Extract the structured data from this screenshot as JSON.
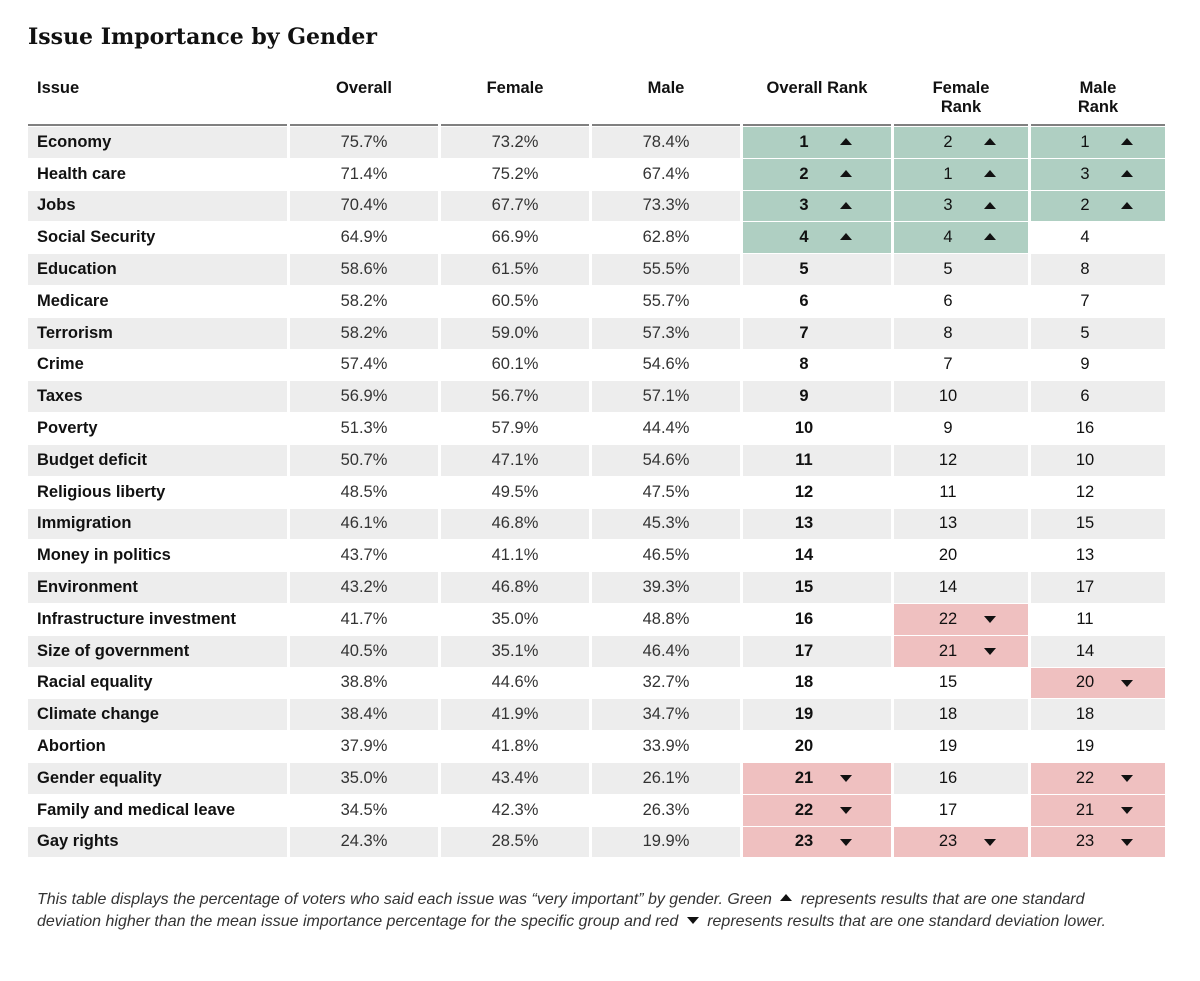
{
  "title": "Issue Importance by Gender",
  "colors": {
    "above_one_sd": "#afcfc2",
    "below_one_sd": "#efc0c0",
    "row_band": "#ededed"
  },
  "chart_data": {
    "type": "table",
    "title": "Issue Importance by Gender",
    "columns": [
      "Issue",
      "Overall",
      "Female",
      "Male",
      "Overall Rank",
      "Female Rank",
      "Male Rank"
    ],
    "rows": [
      {
        "issue": "Economy",
        "overall": "75.7%",
        "female": "73.2%",
        "male": "78.4%",
        "overall_rank": "1",
        "female_rank": "2",
        "male_rank": "1",
        "overall_flag": "up",
        "female_flag": "up",
        "male_flag": "up"
      },
      {
        "issue": "Health care",
        "overall": "71.4%",
        "female": "75.2%",
        "male": "67.4%",
        "overall_rank": "2",
        "female_rank": "1",
        "male_rank": "3",
        "overall_flag": "up",
        "female_flag": "up",
        "male_flag": "up"
      },
      {
        "issue": "Jobs",
        "overall": "70.4%",
        "female": "67.7%",
        "male": "73.3%",
        "overall_rank": "3",
        "female_rank": "3",
        "male_rank": "2",
        "overall_flag": "up",
        "female_flag": "up",
        "male_flag": "up"
      },
      {
        "issue": "Social Security",
        "overall": "64.9%",
        "female": "66.9%",
        "male": "62.8%",
        "overall_rank": "4",
        "female_rank": "4",
        "male_rank": "4",
        "overall_flag": "up",
        "female_flag": "up",
        "male_flag": "none"
      },
      {
        "issue": "Education",
        "overall": "58.6%",
        "female": "61.5%",
        "male": "55.5%",
        "overall_rank": "5",
        "female_rank": "5",
        "male_rank": "8",
        "overall_flag": "none",
        "female_flag": "none",
        "male_flag": "none"
      },
      {
        "issue": "Medicare",
        "overall": "58.2%",
        "female": "60.5%",
        "male": "55.7%",
        "overall_rank": "6",
        "female_rank": "6",
        "male_rank": "7",
        "overall_flag": "none",
        "female_flag": "none",
        "male_flag": "none"
      },
      {
        "issue": "Terrorism",
        "overall": "58.2%",
        "female": "59.0%",
        "male": "57.3%",
        "overall_rank": "7",
        "female_rank": "8",
        "male_rank": "5",
        "overall_flag": "none",
        "female_flag": "none",
        "male_flag": "none"
      },
      {
        "issue": "Crime",
        "overall": "57.4%",
        "female": "60.1%",
        "male": "54.6%",
        "overall_rank": "8",
        "female_rank": "7",
        "male_rank": "9",
        "overall_flag": "none",
        "female_flag": "none",
        "male_flag": "none"
      },
      {
        "issue": "Taxes",
        "overall": "56.9%",
        "female": "56.7%",
        "male": "57.1%",
        "overall_rank": "9",
        "female_rank": "10",
        "male_rank": "6",
        "overall_flag": "none",
        "female_flag": "none",
        "male_flag": "none"
      },
      {
        "issue": "Poverty",
        "overall": "51.3%",
        "female": "57.9%",
        "male": "44.4%",
        "overall_rank": "10",
        "female_rank": "9",
        "male_rank": "16",
        "overall_flag": "none",
        "female_flag": "none",
        "male_flag": "none"
      },
      {
        "issue": "Budget deficit",
        "overall": "50.7%",
        "female": "47.1%",
        "male": "54.6%",
        "overall_rank": "11",
        "female_rank": "12",
        "male_rank": "10",
        "overall_flag": "none",
        "female_flag": "none",
        "male_flag": "none"
      },
      {
        "issue": "Religious liberty",
        "overall": "48.5%",
        "female": "49.5%",
        "male": "47.5%",
        "overall_rank": "12",
        "female_rank": "11",
        "male_rank": "12",
        "overall_flag": "none",
        "female_flag": "none",
        "male_flag": "none"
      },
      {
        "issue": "Immigration",
        "overall": "46.1%",
        "female": "46.8%",
        "male": "45.3%",
        "overall_rank": "13",
        "female_rank": "13",
        "male_rank": "15",
        "overall_flag": "none",
        "female_flag": "none",
        "male_flag": "none"
      },
      {
        "issue": "Money in politics",
        "overall": "43.7%",
        "female": "41.1%",
        "male": "46.5%",
        "overall_rank": "14",
        "female_rank": "20",
        "male_rank": "13",
        "overall_flag": "none",
        "female_flag": "none",
        "male_flag": "none"
      },
      {
        "issue": "Environment",
        "overall": "43.2%",
        "female": "46.8%",
        "male": "39.3%",
        "overall_rank": "15",
        "female_rank": "14",
        "male_rank": "17",
        "overall_flag": "none",
        "female_flag": "none",
        "male_flag": "none"
      },
      {
        "issue": "Infrastructure investment",
        "overall": "41.7%",
        "female": "35.0%",
        "male": "48.8%",
        "overall_rank": "16",
        "female_rank": "22",
        "male_rank": "11",
        "overall_flag": "none",
        "female_flag": "down",
        "male_flag": "none"
      },
      {
        "issue": "Size of government",
        "overall": "40.5%",
        "female": "35.1%",
        "male": "46.4%",
        "overall_rank": "17",
        "female_rank": "21",
        "male_rank": "14",
        "overall_flag": "none",
        "female_flag": "down",
        "male_flag": "none"
      },
      {
        "issue": "Racial equality",
        "overall": "38.8%",
        "female": "44.6%",
        "male": "32.7%",
        "overall_rank": "18",
        "female_rank": "15",
        "male_rank": "20",
        "overall_flag": "none",
        "female_flag": "none",
        "male_flag": "down"
      },
      {
        "issue": "Climate change",
        "overall": "38.4%",
        "female": "41.9%",
        "male": "34.7%",
        "overall_rank": "19",
        "female_rank": "18",
        "male_rank": "18",
        "overall_flag": "none",
        "female_flag": "none",
        "male_flag": "none"
      },
      {
        "issue": "Abortion",
        "overall": "37.9%",
        "female": "41.8%",
        "male": "33.9%",
        "overall_rank": "20",
        "female_rank": "19",
        "male_rank": "19",
        "overall_flag": "none",
        "female_flag": "none",
        "male_flag": "none"
      },
      {
        "issue": "Gender equality",
        "overall": "35.0%",
        "female": "43.4%",
        "male": "26.1%",
        "overall_rank": "21",
        "female_rank": "16",
        "male_rank": "22",
        "overall_flag": "down",
        "female_flag": "none",
        "male_flag": "down"
      },
      {
        "issue": "Family and medical leave",
        "overall": "34.5%",
        "female": "42.3%",
        "male": "26.3%",
        "overall_rank": "22",
        "female_rank": "17",
        "male_rank": "21",
        "overall_flag": "down",
        "female_flag": "none",
        "male_flag": "down"
      },
      {
        "issue": "Gay rights",
        "overall": "24.3%",
        "female": "28.5%",
        "male": "19.9%",
        "overall_rank": "23",
        "female_rank": "23",
        "male_rank": "23",
        "overall_flag": "down",
        "female_flag": "down",
        "male_flag": "down"
      }
    ]
  },
  "footnote": {
    "part1": "This table displays the percentage of voters who said each issue was “very important” by gender. Green",
    "part2": "represents results that are one standard deviation higher than the mean issue importance percentage for the specific group and red",
    "part3": "represents results that are one standard deviation lower."
  }
}
